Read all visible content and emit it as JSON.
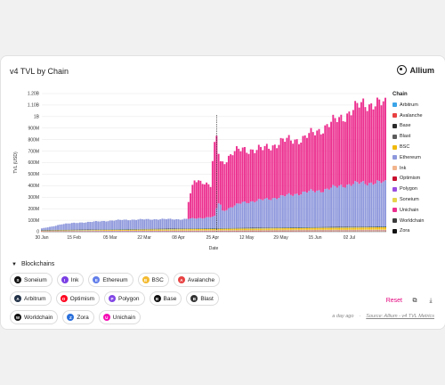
{
  "card": {
    "title": "v4 TVL by Chain",
    "brand": "Allium",
    "section_label": "Blockchains",
    "reset_label": "Reset",
    "timestamp": "a day ago",
    "source_label": "Source: Allium - v4 TVL Metrics",
    "footer_sep": "·"
  },
  "blockchains": [
    {
      "name": "Soneium",
      "icon_color": "#111111",
      "glyph": "S"
    },
    {
      "name": "Ink",
      "icon_color": "#7b3fe4",
      "glyph": "I"
    },
    {
      "name": "Ethereum",
      "icon_color": "#627eea",
      "glyph": "E"
    },
    {
      "name": "BSC",
      "icon_color": "#f3ba2f",
      "glyph": "B"
    },
    {
      "name": "Avalanche",
      "icon_color": "#e84142",
      "glyph": "A"
    },
    {
      "name": "Arbitrum",
      "icon_color": "#213147",
      "glyph": "A"
    },
    {
      "name": "Optimism",
      "icon_color": "#ff0420",
      "glyph": "O"
    },
    {
      "name": "Polygon",
      "icon_color": "#8247e5",
      "glyph": "P"
    },
    {
      "name": "Base",
      "icon_color": "#111111",
      "glyph": "B"
    },
    {
      "name": "Blast",
      "icon_color": "#333333",
      "glyph": "B"
    },
    {
      "name": "Worldchain",
      "icon_color": "#111111",
      "glyph": "W"
    },
    {
      "name": "Zora",
      "icon_color": "#2a6fdb",
      "glyph": "Z"
    },
    {
      "name": "Unichain",
      "icon_color": "#f50db4",
      "glyph": "U"
    }
  ],
  "chart_data": {
    "type": "bar",
    "stacked": true,
    "xlabel": "Date",
    "ylabel": "TVL (USD)",
    "ylim": [
      0,
      1200000000
    ],
    "yticks": [
      0,
      100000000,
      200000000,
      300000000,
      400000000,
      500000000,
      600000000,
      700000000,
      800000000,
      900000000,
      1000000000,
      1100000000,
      1200000000
    ],
    "ytick_labels": [
      "0",
      "100M",
      "200M",
      "300M",
      "400M",
      "500M",
      "600M",
      "700M",
      "800M",
      "900M",
      "1B",
      "1.10B",
      "1.20B"
    ],
    "x_start": "2025-01-30",
    "x_end": "2025-07-20",
    "xtick_dates": [
      "2025-01-30",
      "2025-02-15",
      "2025-03-05",
      "2025-03-22",
      "2025-04-08",
      "2025-04-25",
      "2025-05-12",
      "2025-05-29",
      "2025-06-15",
      "2025-07-02"
    ],
    "xtick_labels": [
      "30 Jan",
      "15 Feb",
      "05 Mar",
      "22 Mar",
      "08 Apr",
      "25 Apr",
      "12 May",
      "29 May",
      "15 Jun",
      "02 Jul"
    ],
    "grid": true,
    "legend_title": "Chain",
    "legend_position": "right",
    "series_colors": {
      "Arbitrum": "#3ba4e8",
      "Avalanche": "#e84142",
      "Base": "#2b2b2b",
      "Blast": "#5c5c5c",
      "BSC": "#f0b90b",
      "Ethereum": "#8e98dc",
      "Ink": "#f2b48c",
      "Optimism": "#c8102e",
      "Polygon": "#9a4ee0",
      "Soneium": "#e6d34c",
      "Unichain": "#ec2f8f",
      "Worldchain": "#3c3c3c",
      "Zora": "#111111"
    },
    "series": [
      {
        "name": "Ethereum",
        "values": [
          [
            0,
            14
          ],
          [
            5,
            28
          ],
          [
            10,
            50
          ],
          [
            20,
            62
          ],
          [
            40,
            80
          ],
          [
            50,
            82
          ],
          [
            60,
            83
          ],
          [
            70,
            80
          ],
          [
            80,
            90
          ],
          [
            86,
            100
          ],
          [
            87,
            170
          ],
          [
            88,
            220
          ],
          [
            89,
            200
          ],
          [
            90,
            150
          ],
          [
            100,
            220
          ],
          [
            110,
            240
          ],
          [
            120,
            270
          ],
          [
            130,
            300
          ],
          [
            140,
            320
          ],
          [
            150,
            360
          ],
          [
            160,
            380
          ],
          [
            170,
            380
          ]
        ]
      },
      {
        "name": "Unichain",
        "values": [
          [
            0,
            0
          ],
          [
            72,
            0
          ],
          [
            73,
            150
          ],
          [
            76,
            330
          ],
          [
            80,
            320
          ],
          [
            84,
            270
          ],
          [
            85,
            470
          ],
          [
            86,
            600
          ],
          [
            87,
            620
          ],
          [
            88,
            440
          ],
          [
            89,
            370
          ],
          [
            90,
            420
          ],
          [
            95,
            470
          ],
          [
            100,
            460
          ],
          [
            110,
            440
          ],
          [
            120,
            480
          ],
          [
            130,
            470
          ],
          [
            140,
            540
          ],
          [
            150,
            600
          ],
          [
            160,
            690
          ],
          [
            170,
            680
          ]
        ]
      },
      {
        "name": "Base",
        "values": [
          [
            0,
            3
          ],
          [
            170,
            5
          ]
        ]
      },
      {
        "name": "Arbitrum",
        "values": [
          [
            0,
            2
          ],
          [
            170,
            3
          ]
        ]
      },
      {
        "name": "BSC",
        "values": [
          [
            0,
            3
          ],
          [
            170,
            18
          ]
        ]
      },
      {
        "name": "Soneium",
        "values": [
          [
            0,
            1
          ],
          [
            170,
            8
          ]
        ]
      },
      {
        "name": "Polygon",
        "values": [
          [
            0,
            2
          ],
          [
            170,
            3
          ]
        ]
      },
      {
        "name": "Optimism",
        "values": [
          [
            0,
            1
          ],
          [
            170,
            2
          ]
        ]
      },
      {
        "name": "Ink",
        "values": [
          [
            0,
            1
          ],
          [
            170,
            2
          ]
        ]
      },
      {
        "name": "Avalanche",
        "values": [
          [
            0,
            1
          ],
          [
            170,
            2
          ]
        ]
      },
      {
        "name": "Blast",
        "values": [
          [
            0,
            0
          ],
          [
            170,
            1
          ]
        ]
      },
      {
        "name": "Worldchain",
        "values": [
          [
            0,
            1
          ],
          [
            170,
            2
          ]
        ]
      },
      {
        "name": "Zora",
        "values": [
          [
            0,
            0
          ],
          [
            170,
            1
          ]
        ]
      }
    ],
    "value_unit": "millions USD"
  }
}
